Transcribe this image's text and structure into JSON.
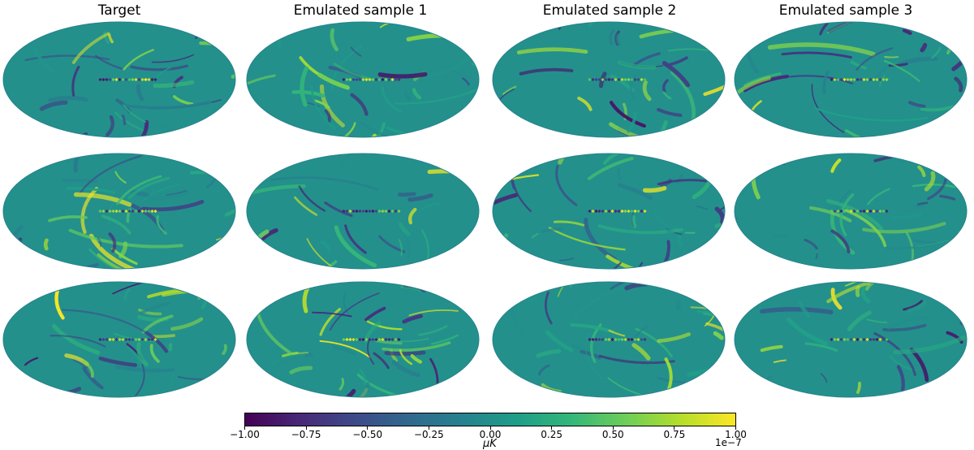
{
  "chart_data": {
    "type": "heatmap",
    "layout": "3 rows x 4 columns of Mollweide sky maps",
    "projection": "mollweide",
    "columns": [
      "Target",
      "Emulated sample 1",
      "Emulated sample 2",
      "Emulated sample 3"
    ],
    "rows": 3,
    "colormap": "viridis",
    "colorbar": {
      "orientation": "horizontal",
      "label": "μK",
      "scale_text": "1e−7",
      "range": [
        -1.0,
        1.0
      ],
      "tick_values": [
        -1.0,
        -0.75,
        -0.5,
        -0.25,
        0.0,
        0.25,
        0.5,
        0.75,
        1.0
      ],
      "tick_labels": [
        "−1.00",
        "−0.75",
        "−0.50",
        "−0.25",
        "0.00",
        "0.25",
        "0.50",
        "0.75",
        "1.00"
      ]
    },
    "colors": {
      "low": "#440154",
      "mid": "#21918c",
      "high": "#fde725"
    }
  }
}
